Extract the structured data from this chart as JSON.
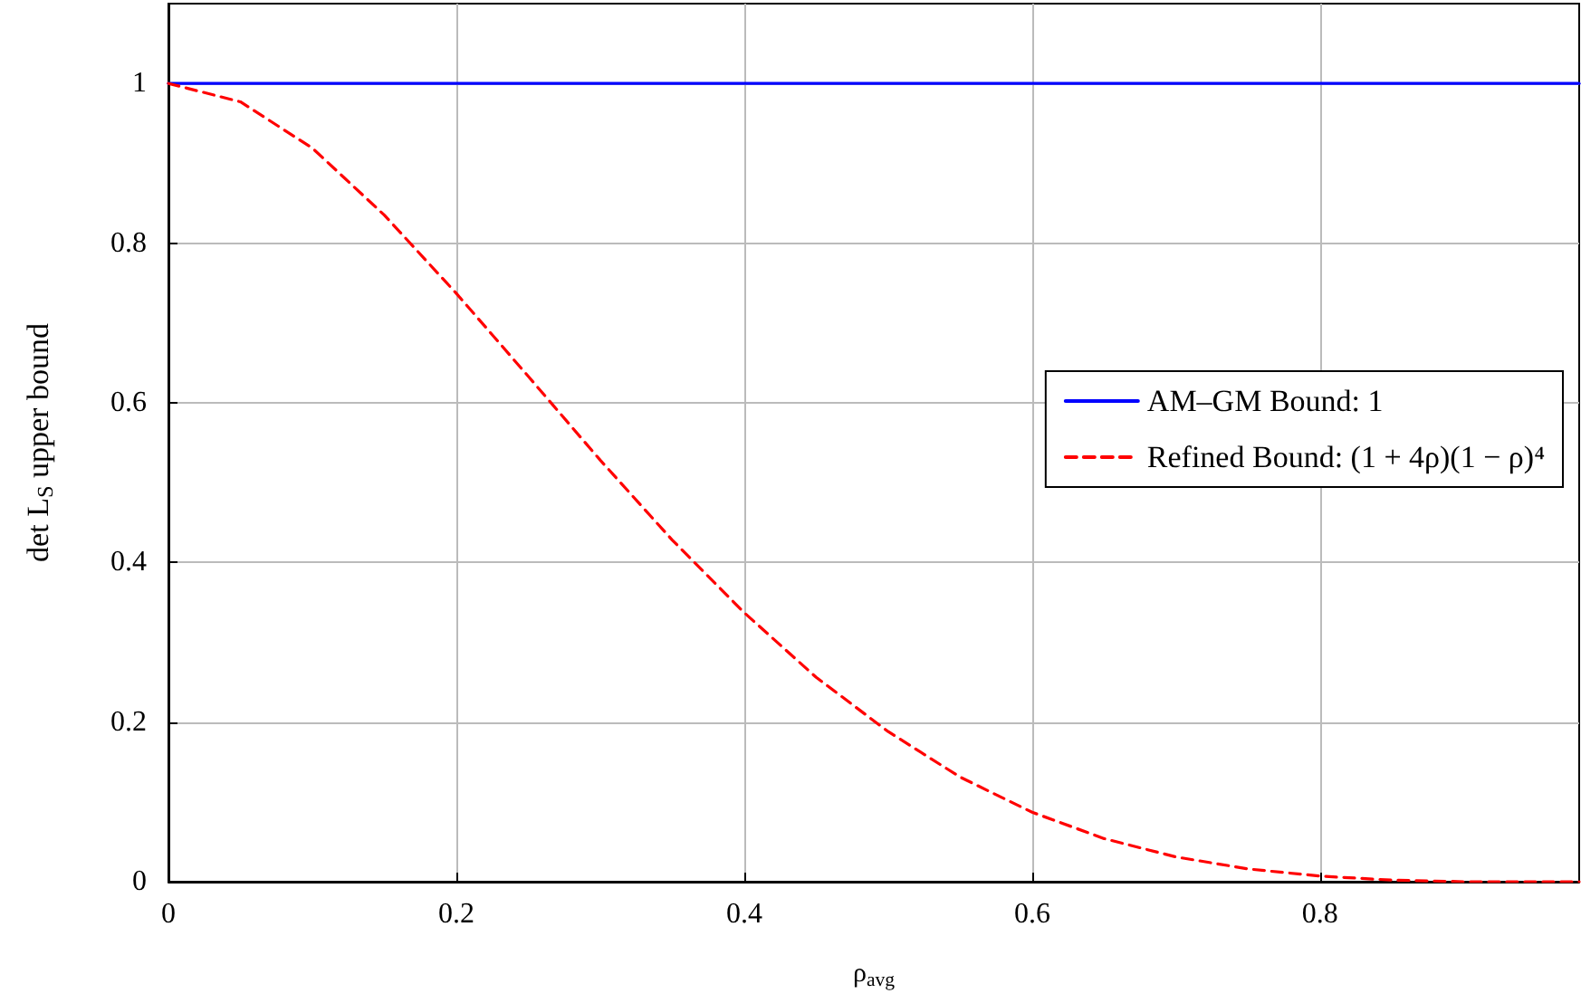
{
  "chart_data": {
    "type": "line",
    "xlabel": "ρ$_{avg}$",
    "ylabel": "det L$_{S}$ upper bound",
    "xlim": [
      0,
      0.98
    ],
    "ylim": [
      0,
      1.1
    ],
    "xticks": [
      0,
      0.2,
      0.4,
      0.6,
      0.8
    ],
    "yticks": [
      0,
      0.2,
      0.4,
      0.6,
      0.8,
      1
    ],
    "grid": true,
    "legend": "right",
    "marker": "none",
    "series": [
      {
        "name": "AM–GM Bound: 1",
        "color": "#0000ff",
        "line_style": "solid",
        "x": [
          0,
          0.98
        ],
        "values": [
          1,
          1
        ]
      },
      {
        "name": "Refined Bound: (1 + 4ρ)(1 − ρ)⁴",
        "color": "#ff0000",
        "line_style": "dashed",
        "x": [
          0,
          0.05,
          0.1,
          0.15,
          0.2,
          0.25,
          0.3,
          0.35,
          0.4,
          0.45,
          0.5,
          0.55,
          0.6,
          0.65,
          0.7,
          0.75,
          0.8,
          0.85,
          0.9,
          0.95,
          0.98
        ],
        "values": [
          1,
          0.977,
          0.919,
          0.835,
          0.737,
          0.633,
          0.528,
          0.428,
          0.337,
          0.256,
          0.188,
          0.131,
          0.087,
          0.054,
          0.031,
          0.016,
          0.007,
          0.002,
          0,
          0,
          0
        ]
      }
    ]
  }
}
